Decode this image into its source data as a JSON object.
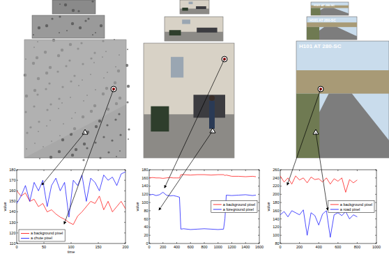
{
  "chart_data": [
    {
      "type": "line",
      "x": [
        0,
        8,
        16,
        24,
        32,
        40,
        48,
        56,
        64,
        72,
        80,
        88,
        96,
        104,
        112,
        120,
        128,
        136,
        144,
        152,
        160,
        168,
        176,
        184,
        192,
        200
      ],
      "xlim": [
        0,
        200
      ],
      "xticks": [
        0,
        50,
        100,
        150,
        200
      ],
      "ylim": [
        110,
        180
      ],
      "yticks": [
        110,
        120,
        130,
        140,
        150,
        160,
        170,
        180
      ],
      "x_label": "time",
      "y_label": "value",
      "legend": "lower left",
      "series": [
        {
          "name": "a background pixel",
          "color": "#ff0000",
          "values": [
            160,
            155,
            158,
            150,
            152,
            145,
            148,
            140,
            142,
            138,
            135,
            133,
            130,
            128,
            136,
            140,
            145,
            150,
            148,
            155,
            142,
            150,
            140,
            145,
            150,
            143
          ]
        },
        {
          "name": "a chute pixel",
          "color": "#0000ff",
          "values": [
            148,
            155,
            165,
            150,
            168,
            160,
            170,
            145,
            165,
            172,
            160,
            168,
            135,
            170,
            165,
            175,
            150,
            172,
            168,
            160,
            175,
            170,
            173,
            165,
            176,
            178
          ]
        }
      ]
    },
    {
      "type": "line",
      "x": [
        0,
        50,
        100,
        150,
        200,
        250,
        300,
        350,
        400,
        440,
        460,
        500,
        600,
        700,
        800,
        900,
        1000,
        1080,
        1100,
        1120,
        1200,
        1300,
        1400,
        1500,
        1550
      ],
      "xlim": [
        0,
        1600
      ],
      "xticks": [
        0,
        200,
        400,
        600,
        800,
        1000,
        1200,
        1400,
        1600
      ],
      "ylim": [
        0,
        180
      ],
      "yticks": [
        0,
        20,
        40,
        60,
        80,
        100,
        120,
        140,
        160,
        180
      ],
      "y_label": "value",
      "legend": "center right",
      "series": [
        {
          "name": "a background pixel",
          "color": "#ff0000",
          "values": [
            160,
            161,
            160,
            160,
            159,
            160,
            161,
            160,
            160,
            160,
            168,
            168,
            167,
            168,
            168,
            167,
            168,
            168,
            166,
            167,
            164,
            164,
            163,
            164,
            163
          ]
        },
        {
          "name": "a foreground pixel",
          "color": "#0000ff",
          "values": [
            118,
            120,
            117,
            119,
            125,
            118,
            116,
            117,
            115,
            113,
            35,
            36,
            34,
            35,
            36,
            35,
            34,
            35,
            60,
            118,
            117,
            118,
            119,
            117,
            118
          ]
        }
      ]
    },
    {
      "type": "line",
      "x": [
        0,
        40,
        80,
        120,
        160,
        200,
        240,
        280,
        320,
        360,
        400,
        440,
        480,
        520,
        560,
        600,
        640,
        680,
        720,
        760,
        800
      ],
      "xlim": [
        0,
        1000
      ],
      "xticks": [
        0,
        200,
        400,
        600,
        800,
        1000
      ],
      "ylim": [
        80,
        260
      ],
      "yticks": [
        80,
        100,
        120,
        140,
        160,
        180,
        200,
        220,
        240,
        260
      ],
      "y_label": "value",
      "legend": "center right",
      "series": [
        {
          "name": "a background pixel",
          "color": "#ff0000",
          "values": [
            245,
            230,
            240,
            225,
            245,
            235,
            240,
            228,
            242,
            236,
            238,
            230,
            240,
            225,
            238,
            232,
            240,
            205,
            236,
            228,
            235
          ]
        },
        {
          "name": "a road pixel",
          "color": "#0000ff",
          "values": [
            150,
            158,
            145,
            160,
            155,
            150,
            162,
            100,
            155,
            148,
            125,
            152,
            160,
            95,
            150,
            155,
            148,
            158,
            140,
            150,
            145
          ]
        }
      ]
    }
  ],
  "photos": [
    {
      "texts": []
    },
    {
      "texts": []
    },
    {
      "texts": [
        "H101 AT 280-SC"
      ]
    }
  ]
}
